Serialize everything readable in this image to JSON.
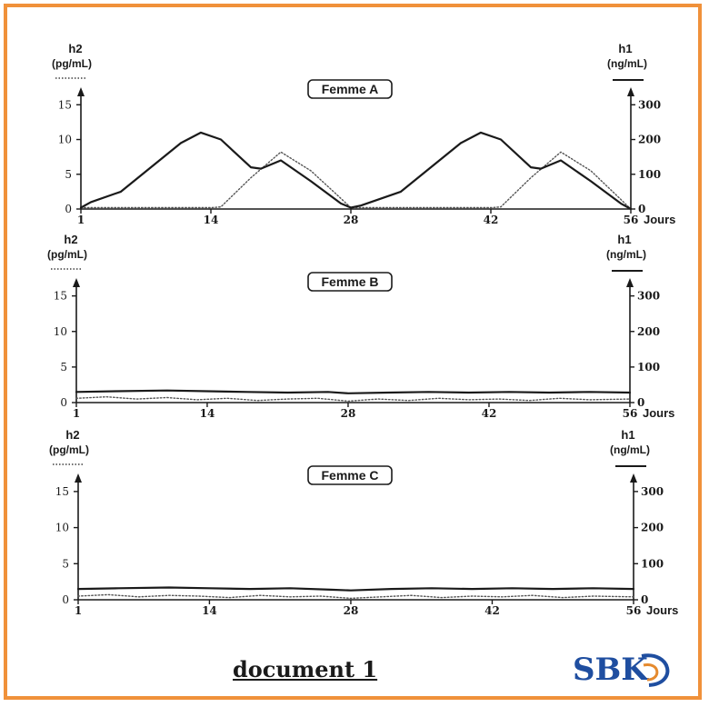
{
  "chart_data": [
    {
      "type": "line",
      "title": "Femme A",
      "left_axis": {
        "label_line1": "h2",
        "label_line2": "(pg/mL)",
        "ticks": [
          "0",
          "5",
          "10",
          "15"
        ],
        "range": [
          0,
          17
        ]
      },
      "right_axis": {
        "label_line1": "h1",
        "label_line2": "(ng/mL)",
        "ticks": [
          "0",
          "100",
          "200",
          "300"
        ],
        "range": [
          0,
          340
        ]
      },
      "x_ticks": [
        "1",
        "14",
        "28",
        "42",
        "56"
      ],
      "x_unit": "Jours",
      "xlim": [
        1,
        56
      ],
      "series": [
        {
          "style": "dotted",
          "axis": "left",
          "x": [
            1,
            14,
            15,
            18,
            21,
            24,
            28,
            42,
            43,
            46,
            49,
            52,
            56
          ],
          "y": [
            0.2,
            0.2,
            0.3,
            4.5,
            8.2,
            5.5,
            0.2,
            0.2,
            0.3,
            4.5,
            8.2,
            5.5,
            0
          ]
        },
        {
          "style": "solid",
          "axis": "left",
          "x": [
            1,
            2,
            5,
            8,
            11,
            13,
            15,
            18,
            19,
            21,
            24,
            27,
            28,
            29,
            33,
            36,
            39,
            41,
            43,
            46,
            47,
            49,
            52,
            55,
            56
          ],
          "y": [
            0.2,
            1,
            2.5,
            6,
            9.5,
            11,
            10,
            6,
            5.8,
            7,
            4,
            0.8,
            0.2,
            0.5,
            2.5,
            6,
            9.5,
            11,
            10,
            6,
            5.8,
            7,
            4,
            0.8,
            0
          ]
        }
      ]
    },
    {
      "type": "line",
      "title": "Femme B",
      "left_axis": {
        "label_line1": "h2",
        "label_line2": "(pg/mL)",
        "ticks": [
          "0",
          "5",
          "10",
          "15"
        ],
        "range": [
          0,
          17
        ]
      },
      "right_axis": {
        "label_line1": "h1",
        "label_line2": "(ng/mL)",
        "ticks": [
          "0",
          "100",
          "200",
          "300"
        ],
        "range": [
          0,
          340
        ]
      },
      "x_ticks": [
        "1",
        "14",
        "28",
        "42",
        "56"
      ],
      "x_unit": "Jours",
      "xlim": [
        1,
        56
      ],
      "series": [
        {
          "style": "solid",
          "axis": "left",
          "x": [
            1,
            5,
            10,
            14,
            18,
            22,
            26,
            28,
            32,
            36,
            40,
            44,
            48,
            52,
            56
          ],
          "y": [
            1.5,
            1.6,
            1.7,
            1.6,
            1.5,
            1.4,
            1.5,
            1.3,
            1.4,
            1.5,
            1.4,
            1.5,
            1.4,
            1.5,
            1.4
          ]
        },
        {
          "style": "dotted",
          "axis": "left",
          "x": [
            1,
            4,
            7,
            10,
            13,
            16,
            19,
            22,
            25,
            28,
            31,
            34,
            37,
            40,
            43,
            46,
            49,
            52,
            56
          ],
          "y": [
            0.6,
            0.8,
            0.5,
            0.7,
            0.4,
            0.6,
            0.3,
            0.5,
            0.6,
            0.2,
            0.5,
            0.3,
            0.6,
            0.4,
            0.5,
            0.3,
            0.6,
            0.4,
            0.5
          ]
        }
      ]
    },
    {
      "type": "line",
      "title": "Femme C",
      "left_axis": {
        "label_line1": "h2",
        "label_line2": "(pg/mL)",
        "ticks": [
          "0",
          "5",
          "10",
          "15"
        ],
        "range": [
          0,
          17
        ]
      },
      "right_axis": {
        "label_line1": "h1",
        "label_line2": "(ng/mL)",
        "ticks": [
          "0",
          "100",
          "200",
          "300"
        ],
        "range": [
          0,
          340
        ]
      },
      "x_ticks": [
        "1",
        "14",
        "28",
        "42",
        "56"
      ],
      "x_unit": "Jours",
      "xlim": [
        1,
        56
      ],
      "series": [
        {
          "style": "solid",
          "axis": "left",
          "x": [
            1,
            5,
            10,
            14,
            18,
            22,
            26,
            28,
            32,
            36,
            40,
            44,
            48,
            52,
            56
          ],
          "y": [
            1.5,
            1.6,
            1.7,
            1.6,
            1.5,
            1.6,
            1.4,
            1.3,
            1.5,
            1.6,
            1.5,
            1.6,
            1.5,
            1.6,
            1.5
          ]
        },
        {
          "style": "dotted",
          "axis": "left",
          "x": [
            1,
            4,
            7,
            10,
            13,
            16,
            19,
            22,
            25,
            28,
            31,
            34,
            37,
            40,
            43,
            46,
            49,
            52,
            56
          ],
          "y": [
            0.5,
            0.7,
            0.4,
            0.6,
            0.5,
            0.3,
            0.6,
            0.4,
            0.5,
            0.2,
            0.4,
            0.6,
            0.3,
            0.5,
            0.4,
            0.6,
            0.3,
            0.5,
            0.4
          ]
        }
      ]
    }
  ],
  "footer": {
    "title": "document 1",
    "logo_text": "SBK"
  },
  "colors": {
    "frame": "#f0913a",
    "ink": "#1a1a1a",
    "logo": "#1f4ea0",
    "logo_accent": "#e58a2e"
  }
}
